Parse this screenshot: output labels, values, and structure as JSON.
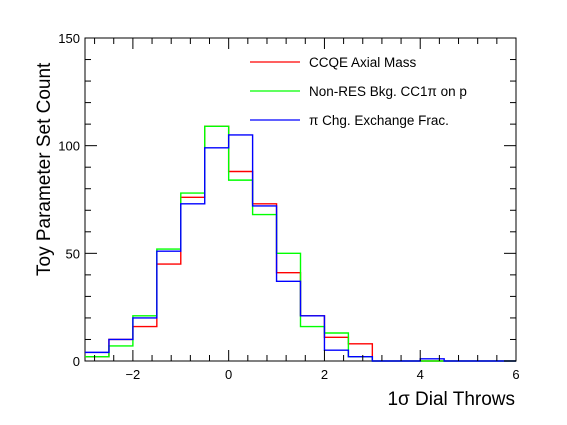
{
  "chart_data": {
    "type": "histogram",
    "ylabel": "Toy Parameter Set Count",
    "xlabel": "1σ Dial Throws",
    "xlim": [
      -3,
      6
    ],
    "ylim": [
      0,
      150
    ],
    "x_ticks": [
      -2,
      0,
      2,
      4,
      6
    ],
    "y_ticks": [
      0,
      50,
      100,
      150
    ],
    "bin_edges": [
      -3.0,
      -2.5,
      -2.0,
      -1.5,
      -1.0,
      -0.5,
      0.0,
      0.5,
      1.0,
      1.5,
      2.0,
      2.5,
      3.0,
      3.5,
      4.0,
      4.5,
      5.0,
      5.5,
      6.0
    ],
    "grid": false,
    "legend_position": "top-right",
    "series": [
      {
        "name": "CCQE Axial Mass",
        "color": "#ff0000",
        "values": [
          2,
          10,
          16,
          45,
          76,
          109,
          88,
          73,
          41,
          21,
          11,
          8,
          0,
          0,
          0,
          0,
          0,
          0
        ]
      },
      {
        "name": "Non-RES Bkg. CC1π on p",
        "color": "#00ff00",
        "values": [
          2,
          7,
          21,
          52,
          78,
          109,
          84,
          68,
          50,
          16,
          13,
          2,
          0,
          0,
          0,
          0,
          0,
          0
        ]
      },
      {
        "name": "π Chg. Exchange Frac.",
        "color": "#0000ff",
        "values": [
          4,
          10,
          20,
          51,
          73,
          99,
          105,
          72,
          37,
          21,
          5,
          2,
          0,
          0,
          1,
          0,
          0,
          0
        ]
      }
    ]
  }
}
